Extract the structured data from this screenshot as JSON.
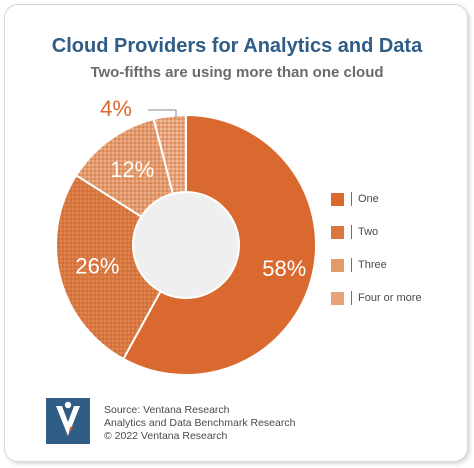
{
  "title": "Cloud Providers for Analytics and Data",
  "subtitle": "Two-fifths are using more than one cloud",
  "chart_data": {
    "type": "pie",
    "categories": [
      "One",
      "Two",
      "Three",
      "Four or more"
    ],
    "values": [
      58,
      26,
      12,
      4
    ],
    "data_labels": [
      "58%",
      "26%",
      "12%",
      "4%"
    ],
    "colors": [
      "#d9692e",
      "#d9773f",
      "#e39a6a",
      "#e8a27a"
    ],
    "legend_position": "right",
    "donut": true
  },
  "source": {
    "line1": "Source: Ventana Research",
    "line2": "Analytics and Data Benchmark Research",
    "line3": "© 2022 Ventana Research"
  },
  "logo_colors": {
    "background": "#2f5d86",
    "mark": "#ffffff",
    "accent": "#d9692e"
  }
}
